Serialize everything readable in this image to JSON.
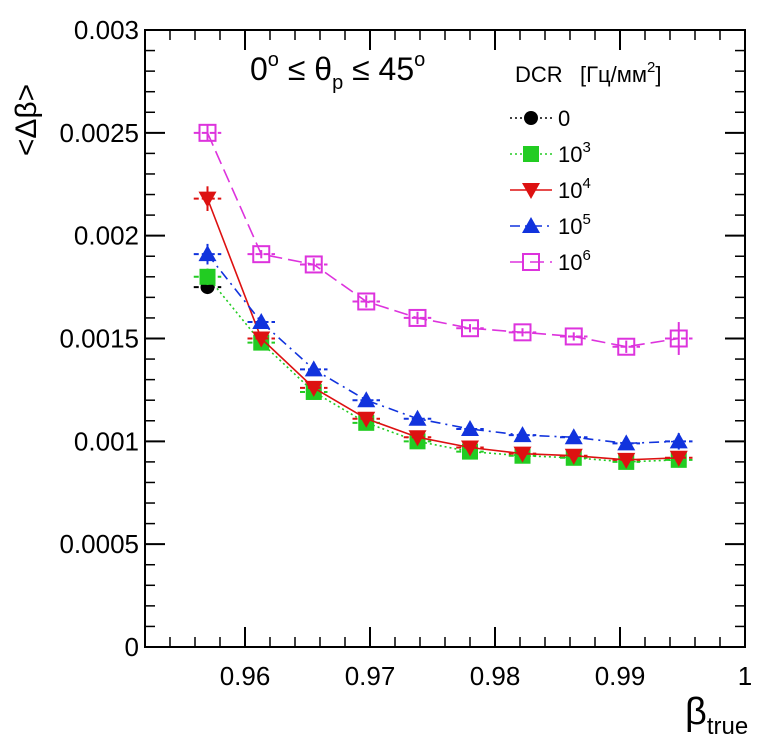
{
  "chart_data": {
    "type": "scatter",
    "title": "",
    "annotation": {
      "left": "0",
      "left_sup": "o",
      "mid1": " ≤ θ",
      "mid_sub": "p",
      "mid2": " ≤ 45",
      "right_sup": "o"
    },
    "xlabel": {
      "main": "β",
      "sub": "true"
    },
    "ylabel": "<Δβ>",
    "xlim": [
      0.952,
      1.0
    ],
    "ylim": [
      0,
      0.003
    ],
    "x_ticks": [
      0.96,
      0.97,
      0.98,
      0.99,
      1
    ],
    "x_tick_labels": [
      "0.96",
      "0.97",
      "0.98",
      "0.99",
      "1"
    ],
    "y_ticks": [
      0,
      0.0005,
      0.001,
      0.0015,
      0.002,
      0.0025,
      0.003
    ],
    "y_tick_labels": [
      "0",
      "0.0005",
      "0.001",
      "0.0015",
      "0.002",
      "0.0025",
      "0.003"
    ],
    "legend": {
      "title": "DCR",
      "unit_prefix": "[Гц/мм",
      "unit_sup": "2",
      "unit_suffix": "]",
      "position": "top-right"
    },
    "x_error": 0.0011,
    "series": [
      {
        "name": "0",
        "label_base": "0",
        "label_sup": "",
        "color": "#000000",
        "marker": "circle",
        "dash": "2,3",
        "x": [
          0.957
        ],
        "y": [
          0.00175
        ],
        "yerr": [
          3e-05
        ]
      },
      {
        "name": "10^3",
        "label_base": "10",
        "label_sup": "3",
        "color": "#22cc22",
        "marker": "square",
        "dash": "2,3",
        "x": [
          0.957,
          0.9613,
          0.9655,
          0.9697,
          0.9738,
          0.978,
          0.9822,
          0.9863,
          0.9905,
          0.9947
        ],
        "y": [
          0.0018,
          0.00148,
          0.00124,
          0.00109,
          0.001,
          0.00095,
          0.00093,
          0.00092,
          0.0009,
          0.00091
        ],
        "yerr": [
          4e-05,
          2e-05,
          2e-05,
          2e-05,
          2e-05,
          2e-05,
          2e-05,
          2e-05,
          2e-05,
          2e-05
        ]
      },
      {
        "name": "10^4",
        "label_base": "10",
        "label_sup": "4",
        "color": "#dd1111",
        "marker": "triangle-down",
        "dash": "",
        "x": [
          0.957,
          0.9613,
          0.9655,
          0.9697,
          0.9738,
          0.978,
          0.9822,
          0.9863,
          0.9905,
          0.9947
        ],
        "y": [
          0.00218,
          0.0015,
          0.00126,
          0.00111,
          0.00102,
          0.00097,
          0.00094,
          0.00093,
          0.00091,
          0.00092
        ],
        "yerr": [
          6e-05,
          3e-05,
          2e-05,
          2e-05,
          2e-05,
          2e-05,
          2e-05,
          2e-05,
          2e-05,
          2e-05
        ]
      },
      {
        "name": "10^5",
        "label_base": "10",
        "label_sup": "5",
        "color": "#1133dd",
        "marker": "triangle-up",
        "dash": "10,5,2,5",
        "x": [
          0.957,
          0.9613,
          0.9655,
          0.9697,
          0.9738,
          0.978,
          0.9822,
          0.9863,
          0.9905,
          0.9947
        ],
        "y": [
          0.00191,
          0.00158,
          0.00135,
          0.0012,
          0.00111,
          0.00106,
          0.00103,
          0.00102,
          0.00099,
          0.001
        ],
        "yerr": [
          5e-05,
          2e-05,
          2e-05,
          2e-05,
          2e-05,
          2e-05,
          2e-05,
          2e-05,
          2e-05,
          4e-05
        ]
      },
      {
        "name": "10^6",
        "label_base": "10",
        "label_sup": "6",
        "color": "#dd33dd",
        "marker": "open-square",
        "dash": "14,6",
        "x": [
          0.957,
          0.9613,
          0.9655,
          0.9697,
          0.9738,
          0.978,
          0.9822,
          0.9863,
          0.9905,
          0.9947
        ],
        "y": [
          0.0025,
          0.00191,
          0.00186,
          0.00168,
          0.0016,
          0.00155,
          0.00153,
          0.00151,
          0.00146,
          0.0015
        ],
        "yerr": [
          4e-05,
          2e-05,
          3e-05,
          3e-05,
          3e-05,
          2e-05,
          2e-05,
          2e-05,
          3e-05,
          8e-05
        ]
      }
    ]
  }
}
